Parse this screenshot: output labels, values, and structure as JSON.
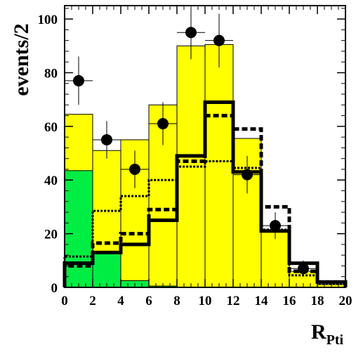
{
  "chart_data": {
    "type": "histogram",
    "title": "",
    "xlabel": "R",
    "xlabel_subscript": "Pti",
    "ylabel": "events/2",
    "xlim": [
      0,
      20
    ],
    "ylim": [
      0,
      105
    ],
    "x_ticks": [
      0,
      2,
      4,
      6,
      8,
      10,
      12,
      14,
      16,
      18,
      20
    ],
    "y_ticks": [
      0,
      20,
      40,
      60,
      80,
      100
    ],
    "grid": false,
    "bin_edges": [
      0,
      2,
      4,
      6,
      8,
      10,
      12,
      14,
      16,
      18,
      20
    ],
    "series": [
      {
        "style": "filled-yellow",
        "color": "#ffff00",
        "values": [
          64.5,
          51,
          55,
          68,
          90,
          90.5,
          55.5,
          21,
          6,
          1
        ]
      },
      {
        "style": "filled-green",
        "color": "#00ee44",
        "values": [
          43.5,
          12.5,
          2.5,
          0.5,
          0,
          0,
          0,
          0,
          0,
          0
        ]
      },
      {
        "style": "thick-solid",
        "color": "#000000",
        "values": [
          9,
          13,
          16,
          25,
          49,
          69,
          43,
          21,
          9,
          2
        ]
      },
      {
        "style": "thick-dashed",
        "color": "#000000",
        "values": [
          8,
          16.5,
          20,
          29,
          47,
          64,
          59,
          30,
          6,
          2
        ]
      },
      {
        "style": "thin-dotted",
        "color": "#000000",
        "values": [
          11.5,
          28.5,
          34,
          40,
          45,
          47,
          44.5,
          21.5,
          4.5,
          1.5
        ]
      }
    ],
    "data_points": {
      "style": "markers-with-error-bars",
      "x": [
        1,
        3,
        5,
        7,
        9,
        11,
        13,
        15,
        17
      ],
      "y": [
        77,
        55,
        44,
        61,
        95,
        92,
        42,
        23,
        7
      ],
      "yerr": [
        9,
        7,
        7,
        8,
        10,
        10,
        7,
        5,
        3
      ]
    }
  }
}
